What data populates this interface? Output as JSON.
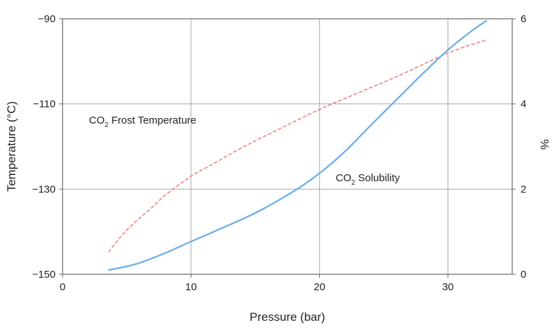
{
  "chart_data": {
    "type": "line",
    "xlabel": "Pressure (bar)",
    "ylabel_left": "Temperature (°C)",
    "ylabel_right": "%",
    "x_ticks": [
      0,
      10,
      20,
      30
    ],
    "y_left_ticks": [
      -150,
      -130,
      -110,
      -90
    ],
    "y_right_ticks": [
      0,
      2,
      4,
      6
    ],
    "x_range": [
      0,
      35
    ],
    "y_left_range": [
      -150,
      -90
    ],
    "y_right_range": [
      0,
      6
    ],
    "grid": true,
    "annotations": [
      {
        "text": "CO2 Frost Temperature",
        "prefix": "CO",
        "sub": "2",
        "suffix": " Frost Temperature",
        "series": "frost"
      },
      {
        "text": "CO2 Solubility",
        "prefix": "CO",
        "sub": "2",
        "suffix": " Solubility",
        "series": "solubility"
      }
    ],
    "series": [
      {
        "id": "frost",
        "axis": "left",
        "style": "dashed",
        "color": "#f08080",
        "points": [
          [
            3.6,
            -144.7
          ],
          [
            5,
            -139.6
          ],
          [
            7,
            -134.2
          ],
          [
            8,
            -131.4
          ],
          [
            10,
            -127.0
          ],
          [
            12,
            -123.6
          ],
          [
            14,
            -120.2
          ],
          [
            17,
            -115.7
          ],
          [
            20,
            -111.3
          ],
          [
            23,
            -107.4
          ],
          [
            26,
            -103.6
          ],
          [
            29,
            -99.4
          ],
          [
            31,
            -96.9
          ],
          [
            33,
            -95.0
          ]
        ]
      },
      {
        "id": "solubility",
        "axis": "right",
        "style": "solid",
        "color": "#6fb0ea",
        "points": [
          [
            3.6,
            0.1
          ],
          [
            5.7,
            0.24
          ],
          [
            8,
            0.5
          ],
          [
            10,
            0.77
          ],
          [
            12,
            1.03
          ],
          [
            15,
            1.44
          ],
          [
            18,
            1.95
          ],
          [
            20,
            2.37
          ],
          [
            22,
            2.89
          ],
          [
            24,
            3.5
          ],
          [
            26,
            4.1
          ],
          [
            28,
            4.7
          ],
          [
            30,
            5.27
          ],
          [
            32,
            5.75
          ],
          [
            33,
            5.95
          ]
        ]
      }
    ]
  }
}
